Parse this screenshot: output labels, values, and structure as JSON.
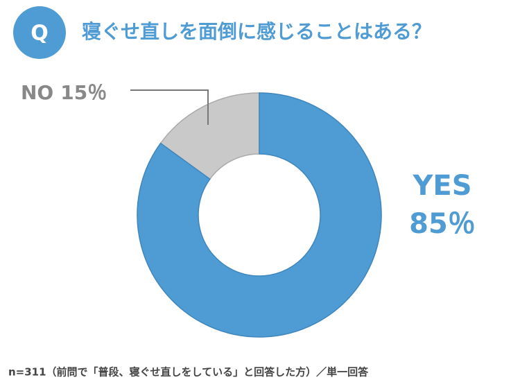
{
  "badge": "Q",
  "chart_data": {
    "type": "pie",
    "donut": true,
    "title": "寝ぐせ直しを面倒に感じることはある？",
    "categories": [
      "YES",
      "NO"
    ],
    "values": [
      85,
      15
    ],
    "value_labels": [
      "85％",
      "15％"
    ],
    "colors": [
      "#4f9bd4",
      "#c9c9c9"
    ],
    "note": "n=311（前問で「普段、寝ぐせ直しをしている」と回答した方）／単一回答"
  }
}
